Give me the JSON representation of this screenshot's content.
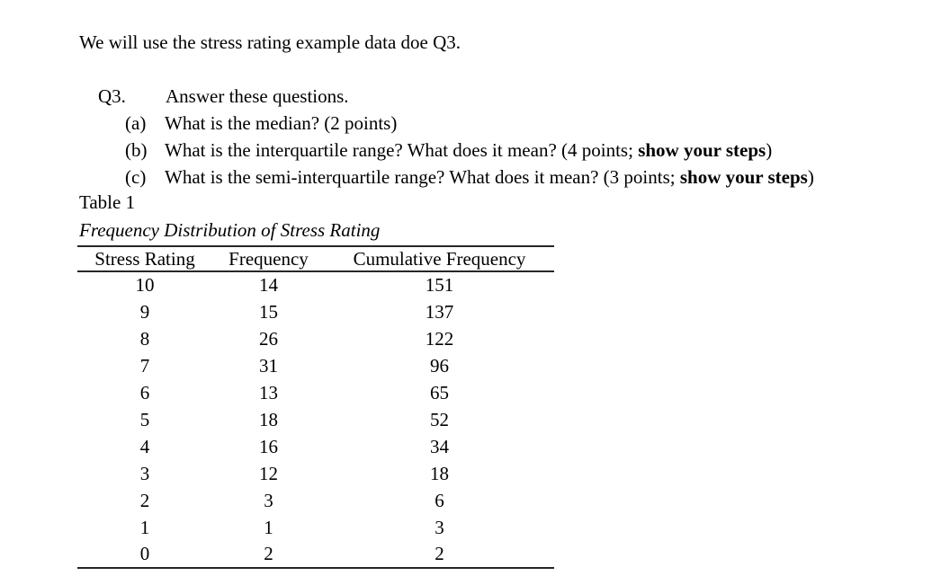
{
  "doc": {
    "intro": "We will use the stress rating example data doe Q3.",
    "q3": {
      "label": "Q3.",
      "text": "Answer these questions."
    },
    "questions": [
      {
        "label": "(a)",
        "pre": "What is the median? (2 points)",
        "bold": "",
        "post": ""
      },
      {
        "label": "(b)",
        "pre": "What is the interquartile range? What does it mean? (4 points; ",
        "bold": "show your steps",
        "post": ")"
      },
      {
        "label": "(c)",
        "pre": "What is the semi-interquartile range? What does it mean? (3 points; ",
        "bold": "show your steps",
        "post": ")"
      }
    ],
    "table": {
      "label": "Table 1",
      "caption": "Frequency Distribution of Stress Rating",
      "headers": [
        "Stress Rating",
        "Frequency",
        "Cumulative Frequency"
      ],
      "rows": [
        [
          "10",
          "14",
          "151"
        ],
        [
          "9",
          "15",
          "137"
        ],
        [
          "8",
          "26",
          "122"
        ],
        [
          "7",
          "31",
          "96"
        ],
        [
          "6",
          "13",
          "65"
        ],
        [
          "5",
          "18",
          "52"
        ],
        [
          "4",
          "16",
          "34"
        ],
        [
          "3",
          "12",
          "18"
        ],
        [
          "2",
          "3",
          "6"
        ],
        [
          "1",
          "1",
          "3"
        ],
        [
          "0",
          "2",
          "2"
        ]
      ]
    },
    "colors": {
      "text": "#000000",
      "rule": "#262626",
      "background": "#ffffff"
    }
  }
}
